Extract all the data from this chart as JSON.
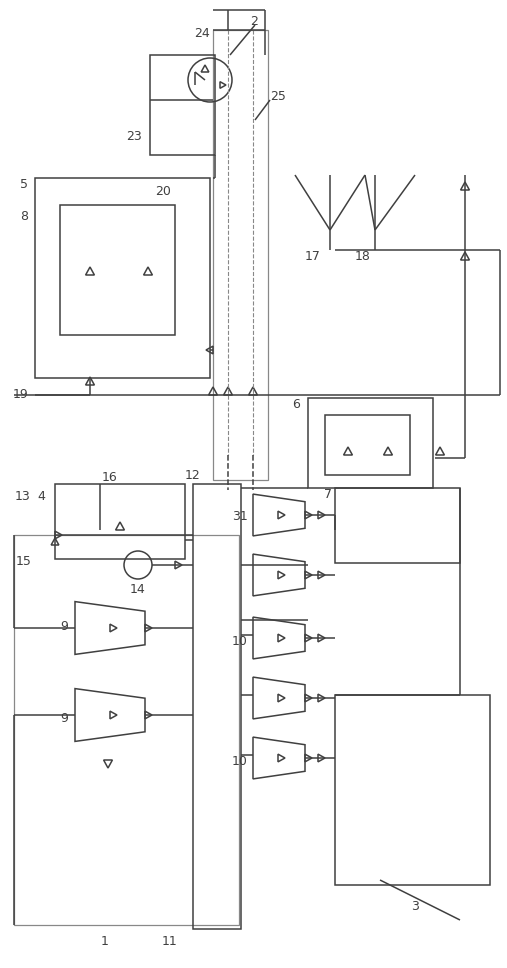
{
  "bg_color": "#ffffff",
  "line_color": "#404040",
  "fig_width": 5.07,
  "fig_height": 9.68,
  "dpi": 100
}
